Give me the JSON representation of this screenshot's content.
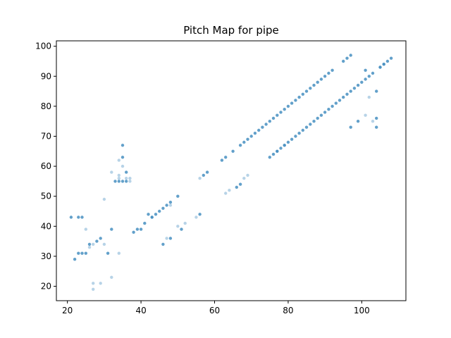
{
  "chart_data": {
    "type": "scatter",
    "title": "Pitch Map for pipe",
    "xlabel": "",
    "ylabel": "",
    "xlim": [
      17,
      112
    ],
    "ylim": [
      15.2,
      101.8
    ],
    "xticks": [
      20,
      40,
      60,
      80,
      100
    ],
    "yticks": [
      20,
      30,
      40,
      50,
      60,
      70,
      80,
      90,
      100
    ],
    "grid": false,
    "marker_color": "#1f77b4",
    "series": [
      {
        "points_strong": [
          [
            21,
            43
          ],
          [
            23,
            43
          ],
          [
            24,
            43
          ],
          [
            22,
            29
          ],
          [
            23,
            31
          ],
          [
            24,
            31
          ],
          [
            25,
            31
          ],
          [
            26,
            34
          ],
          [
            28,
            35
          ],
          [
            29,
            36
          ],
          [
            31,
            31
          ],
          [
            32,
            39
          ],
          [
            33,
            55
          ],
          [
            34,
            55
          ],
          [
            35,
            55
          ],
          [
            36,
            55
          ],
          [
            35,
            63
          ],
          [
            35,
            67
          ],
          [
            36,
            58
          ],
          [
            38,
            38
          ],
          [
            39,
            39
          ],
          [
            40,
            39
          ],
          [
            41,
            41
          ],
          [
            42,
            44
          ],
          [
            43,
            43
          ],
          [
            44,
            44
          ],
          [
            45,
            45
          ],
          [
            46,
            46
          ],
          [
            47,
            47
          ],
          [
            48,
            48
          ],
          [
            50,
            50
          ],
          [
            46,
            34
          ],
          [
            48,
            36
          ],
          [
            51,
            39
          ],
          [
            56,
            44
          ],
          [
            57,
            57
          ],
          [
            58,
            58
          ],
          [
            62,
            62
          ],
          [
            63,
            63
          ],
          [
            65,
            65
          ],
          [
            66,
            53
          ],
          [
            67,
            54
          ],
          [
            67,
            67
          ],
          [
            68,
            68
          ],
          [
            69,
            69
          ],
          [
            70,
            70
          ],
          [
            71,
            71
          ],
          [
            72,
            72
          ],
          [
            73,
            73
          ],
          [
            74,
            74
          ],
          [
            75,
            75
          ],
          [
            76,
            76
          ],
          [
            77,
            77
          ],
          [
            78,
            78
          ],
          [
            79,
            79
          ],
          [
            80,
            80
          ],
          [
            81,
            81
          ],
          [
            82,
            82
          ],
          [
            83,
            83
          ],
          [
            84,
            84
          ],
          [
            85,
            85
          ],
          [
            86,
            86
          ],
          [
            87,
            87
          ],
          [
            88,
            88
          ],
          [
            89,
            89
          ],
          [
            90,
            90
          ],
          [
            91,
            91
          ],
          [
            92,
            92
          ],
          [
            95,
            95
          ],
          [
            96,
            96
          ],
          [
            97,
            97
          ],
          [
            75,
            63
          ],
          [
            76,
            64
          ],
          [
            77,
            65
          ],
          [
            78,
            66
          ],
          [
            79,
            67
          ],
          [
            80,
            68
          ],
          [
            81,
            69
          ],
          [
            82,
            70
          ],
          [
            83,
            71
          ],
          [
            84,
            72
          ],
          [
            85,
            73
          ],
          [
            86,
            74
          ],
          [
            87,
            75
          ],
          [
            88,
            76
          ],
          [
            89,
            77
          ],
          [
            90,
            78
          ],
          [
            91,
            79
          ],
          [
            92,
            80
          ],
          [
            93,
            81
          ],
          [
            94,
            82
          ],
          [
            95,
            83
          ],
          [
            96,
            84
          ],
          [
            97,
            85
          ],
          [
            98,
            86
          ],
          [
            99,
            87
          ],
          [
            100,
            88
          ],
          [
            101,
            89
          ],
          [
            102,
            90
          ],
          [
            103,
            91
          ],
          [
            104,
            85
          ],
          [
            104,
            76
          ],
          [
            104,
            73
          ],
          [
            105,
            93
          ],
          [
            106,
            94
          ],
          [
            107,
            95
          ],
          [
            108,
            96
          ],
          [
            97,
            73
          ],
          [
            99,
            75
          ],
          [
            101,
            92
          ]
        ],
        "points_light": [
          [
            25,
            39
          ],
          [
            26,
            33
          ],
          [
            27,
            19
          ],
          [
            27,
            21
          ],
          [
            27,
            34
          ],
          [
            29,
            21
          ],
          [
            30,
            34
          ],
          [
            30,
            49
          ],
          [
            32,
            23
          ],
          [
            32,
            58
          ],
          [
            34,
            31
          ],
          [
            34,
            56
          ],
          [
            34,
            57
          ],
          [
            34,
            62
          ],
          [
            35,
            60
          ],
          [
            36,
            56
          ],
          [
            37,
            55
          ],
          [
            37,
            56
          ],
          [
            43,
            43
          ],
          [
            47,
            36
          ],
          [
            48,
            47
          ],
          [
            50,
            40
          ],
          [
            52,
            41
          ],
          [
            55,
            43
          ],
          [
            56,
            56
          ],
          [
            63,
            51
          ],
          [
            64,
            52
          ],
          [
            68,
            56
          ],
          [
            69,
            57
          ],
          [
            77,
            65
          ],
          [
            79,
            67
          ],
          [
            101,
            77
          ],
          [
            102,
            83
          ],
          [
            103,
            75
          ],
          [
            105,
            93
          ],
          [
            106,
            94
          ]
        ]
      }
    ]
  }
}
